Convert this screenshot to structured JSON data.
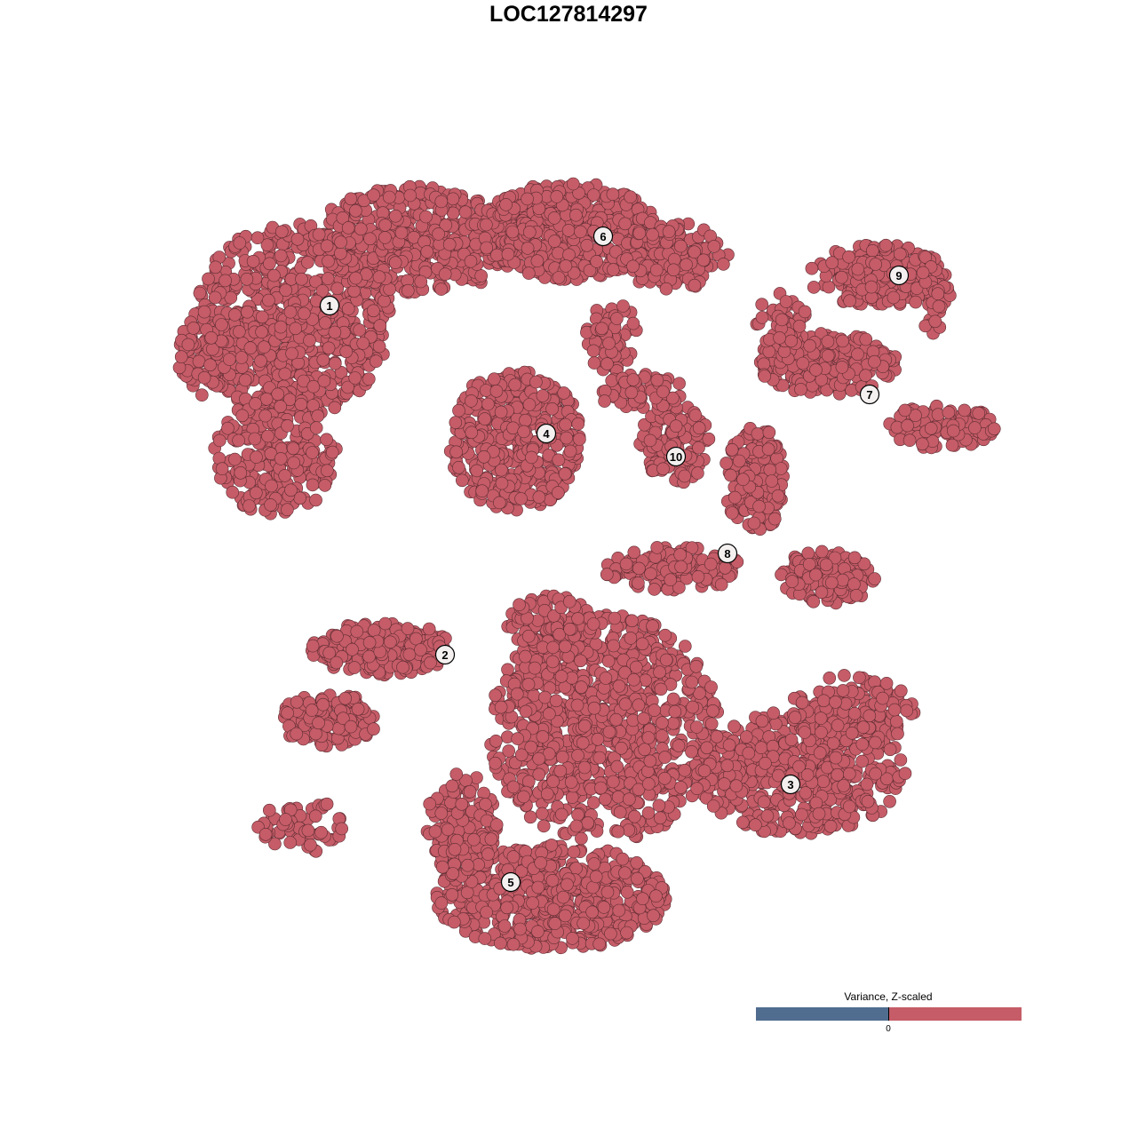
{
  "chart_data": {
    "type": "scatter",
    "title": "LOC127814297",
    "xlabel": "",
    "ylabel": "",
    "grid": false,
    "axes_visible": false,
    "point_color": "#c55c67",
    "point_edge_color": "#5e2c33",
    "legend": {
      "title": "Variance, Z-scaled",
      "placement": "bottom-right",
      "low_color": "#506d8f",
      "high_color": "#c55c67",
      "ticks": [
        "0"
      ]
    },
    "clusters": [
      {
        "label": "1",
        "label_pos": [
          -26.9,
          29.6
        ],
        "blobs": [
          [
            -31,
            28,
            11,
            11,
            700
          ],
          [
            -33,
            13,
            7,
            7,
            250
          ],
          [
            -17,
            37,
            12,
            6,
            500
          ],
          [
            -41,
            24,
            3,
            5,
            80
          ]
        ]
      },
      {
        "label": "2",
        "label_pos": [
          -13.9,
          -9.7
        ],
        "blobs": [
          [
            -21,
            -9,
            8,
            3,
            200
          ],
          [
            -27,
            -17,
            5.5,
            3,
            150
          ],
          [
            -30,
            -29,
            5,
            3,
            60
          ]
        ]
      },
      {
        "label": "3",
        "label_pos": [
          25.0,
          -24.3
        ],
        "blobs": [
          [
            26,
            -23,
            12,
            7,
            500
          ],
          [
            32,
            -16,
            7,
            4,
            150
          ]
        ]
      },
      {
        "label": "4",
        "label_pos": [
          -2.5,
          15.2
        ],
        "blobs": [
          [
            -6,
            14.5,
            7.5,
            8,
            450
          ]
        ]
      },
      {
        "label": "5",
        "label_pos": [
          -6.5,
          -35.3
        ],
        "blobs": [
          [
            -2,
            -37,
            13,
            6,
            600
          ],
          [
            -12,
            -29,
            4,
            6,
            150
          ]
        ]
      },
      {
        "label": "6",
        "label_pos": [
          3.9,
          37.4
        ],
        "blobs": [
          [
            0,
            38,
            10,
            5.5,
            500
          ],
          [
            12,
            35,
            6,
            4,
            150
          ],
          [
            5,
            26,
            3,
            4,
            60
          ]
        ]
      },
      {
        "label": "7",
        "label_pos": [
          33.9,
          19.6
        ],
        "blobs": [
          [
            29,
            23,
            8,
            3.5,
            250
          ],
          [
            42,
            16,
            6,
            2.5,
            120
          ],
          [
            24,
            28,
            3,
            3,
            40
          ]
        ]
      },
      {
        "label": "8",
        "label_pos": [
          17.9,
          1.7
        ],
        "blobs": [
          [
            21,
            10,
            3.5,
            6,
            150
          ],
          [
            29,
            -1,
            5.5,
            3,
            150
          ],
          [
            12,
            0,
            8,
            2.5,
            150
          ]
        ]
      },
      {
        "label": "9",
        "label_pos": [
          37.2,
          33.0
        ],
        "blobs": [
          [
            35,
            33,
            8,
            3.5,
            200
          ],
          [
            41,
            30,
            2,
            4,
            40
          ]
        ]
      },
      {
        "label": "10",
        "label_pos": [
          12.1,
          12.6
        ],
        "blobs": [
          [
            12,
            14,
            4,
            4.5,
            120
          ],
          [
            8,
            20,
            5,
            2,
            60
          ]
        ]
      },
      {
        "label": "",
        "label_pos": null,
        "blobs": [
          [
            4,
            -18,
            13,
            13,
            900
          ],
          [
            -2,
            -6,
            5,
            3,
            100
          ]
        ]
      }
    ]
  }
}
